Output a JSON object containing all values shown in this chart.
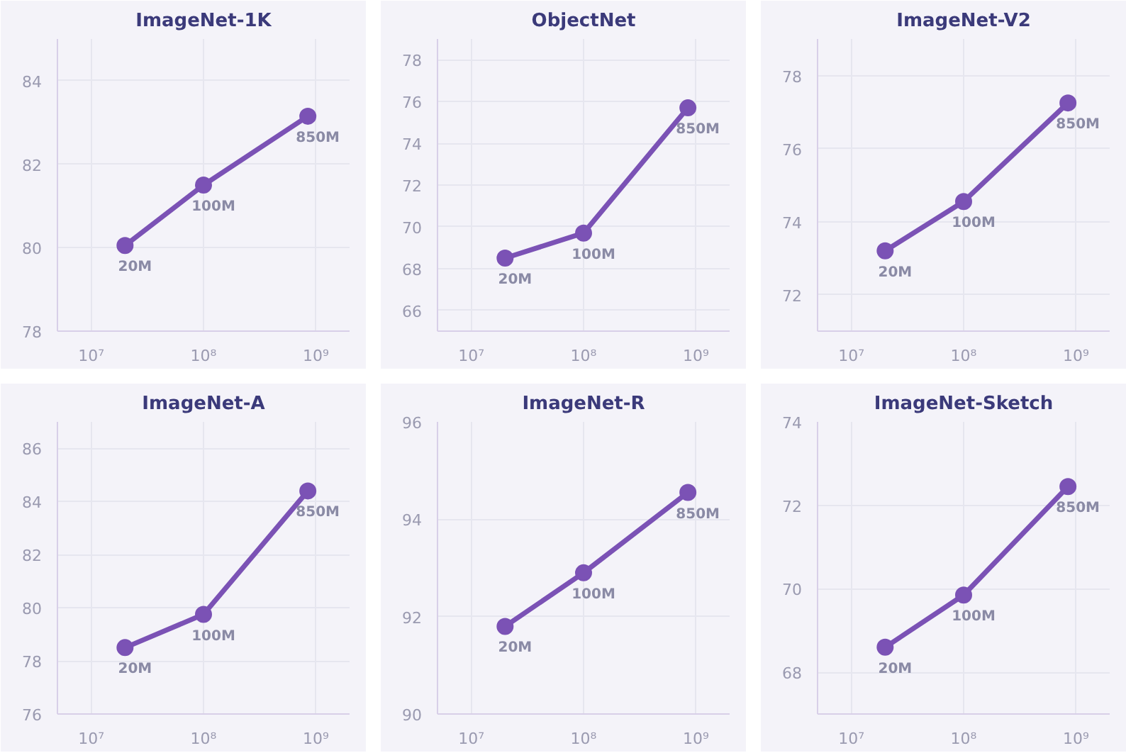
{
  "chart_data": [
    {
      "type": "line",
      "title": "ImageNet-1K",
      "x": [
        20000000,
        100000000,
        850000000
      ],
      "values": [
        80.05,
        81.5,
        83.15
      ],
      "color": "#7b52b5",
      "marker": "circle",
      "line_style": "solid",
      "log": "x",
      "grid": true,
      "xlim": [
        5000000,
        2000000000
      ],
      "xticks": [
        {
          "value": 10000000,
          "label": "10⁷"
        },
        {
          "value": 100000000,
          "label": "10⁸"
        },
        {
          "value": 1000000000,
          "label": "10⁹"
        }
      ],
      "ylim": [
        78,
        85
      ],
      "yticks": [
        78,
        80,
        82,
        84
      ],
      "annotations": [
        {
          "text": "20M",
          "x": 20000000,
          "y": 80.05
        },
        {
          "text": "100M",
          "x": 100000000,
          "y": 81.5
        },
        {
          "text": "850M",
          "x": 850000000,
          "y": 83.15
        }
      ]
    },
    {
      "type": "line",
      "title": "ObjectNet",
      "x": [
        20000000,
        100000000,
        850000000
      ],
      "values": [
        68.5,
        69.7,
        75.7
      ],
      "color": "#7b52b5",
      "marker": "circle",
      "line_style": "solid",
      "log": "x",
      "grid": true,
      "xlim": [
        5000000,
        2000000000
      ],
      "xticks": [
        {
          "value": 10000000,
          "label": "10⁷"
        },
        {
          "value": 100000000,
          "label": "10⁸"
        },
        {
          "value": 1000000000,
          "label": "10⁹"
        }
      ],
      "ylim": [
        65,
        79
      ],
      "yticks": [
        66,
        68,
        70,
        72,
        74,
        76,
        78
      ],
      "annotations": [
        {
          "text": "20M",
          "x": 20000000,
          "y": 68.5
        },
        {
          "text": "100M",
          "x": 100000000,
          "y": 69.7
        },
        {
          "text": "850M",
          "x": 850000000,
          "y": 75.7
        }
      ]
    },
    {
      "type": "line",
      "title": "ImageNet-V2",
      "x": [
        20000000,
        100000000,
        850000000
      ],
      "values": [
        73.2,
        74.55,
        77.25
      ],
      "color": "#7b52b5",
      "marker": "circle",
      "line_style": "solid",
      "log": "x",
      "grid": true,
      "xlim": [
        5000000,
        2000000000
      ],
      "xticks": [
        {
          "value": 10000000,
          "label": "10⁷"
        },
        {
          "value": 100000000,
          "label": "10⁸"
        },
        {
          "value": 1000000000,
          "label": "10⁹"
        }
      ],
      "ylim": [
        71,
        79
      ],
      "yticks": [
        72,
        74,
        76,
        78
      ],
      "annotations": [
        {
          "text": "20M",
          "x": 20000000,
          "y": 73.2
        },
        {
          "text": "100M",
          "x": 100000000,
          "y": 74.55
        },
        {
          "text": "850M",
          "x": 850000000,
          "y": 77.25
        }
      ]
    },
    {
      "type": "line",
      "title": "ImageNet-A",
      "x": [
        20000000,
        100000000,
        850000000
      ],
      "values": [
        78.5,
        79.75,
        84.4
      ],
      "color": "#7b52b5",
      "marker": "circle",
      "line_style": "solid",
      "log": "x",
      "grid": true,
      "xlim": [
        5000000,
        2000000000
      ],
      "xticks": [
        {
          "value": 10000000,
          "label": "10⁷"
        },
        {
          "value": 100000000,
          "label": "10⁸"
        },
        {
          "value": 1000000000,
          "label": "10⁹"
        }
      ],
      "ylim": [
        76,
        87
      ],
      "yticks": [
        76,
        78,
        80,
        82,
        84,
        86
      ],
      "annotations": [
        {
          "text": "20M",
          "x": 20000000,
          "y": 78.5
        },
        {
          "text": "100M",
          "x": 100000000,
          "y": 79.75
        },
        {
          "text": "850M",
          "x": 850000000,
          "y": 84.4
        }
      ]
    },
    {
      "type": "line",
      "title": "ImageNet-R",
      "x": [
        20000000,
        100000000,
        850000000
      ],
      "values": [
        91.8,
        92.9,
        94.55
      ],
      "color": "#7b52b5",
      "marker": "circle",
      "line_style": "solid",
      "log": "x",
      "grid": true,
      "xlim": [
        5000000,
        2000000000
      ],
      "xticks": [
        {
          "value": 10000000,
          "label": "10⁷"
        },
        {
          "value": 100000000,
          "label": "10⁸"
        },
        {
          "value": 1000000000,
          "label": "10⁹"
        }
      ],
      "ylim": [
        90,
        96
      ],
      "yticks": [
        90,
        92,
        94,
        96
      ],
      "annotations": [
        {
          "text": "20M",
          "x": 20000000,
          "y": 91.8
        },
        {
          "text": "100M",
          "x": 100000000,
          "y": 92.9
        },
        {
          "text": "850M",
          "x": 850000000,
          "y": 94.55
        }
      ]
    },
    {
      "type": "line",
      "title": "ImageNet-Sketch",
      "x": [
        20000000,
        100000000,
        850000000
      ],
      "values": [
        68.6,
        69.85,
        72.45
      ],
      "color": "#7b52b5",
      "marker": "circle",
      "line_style": "solid",
      "log": "x",
      "grid": true,
      "xlim": [
        5000000,
        2000000000
      ],
      "xticks": [
        {
          "value": 10000000,
          "label": "10⁷"
        },
        {
          "value": 100000000,
          "label": "10⁸"
        },
        {
          "value": 1000000000,
          "label": "10⁹"
        }
      ],
      "ylim": [
        67,
        74
      ],
      "yticks": [
        68,
        70,
        72,
        74
      ],
      "annotations": [
        {
          "text": "20M",
          "x": 20000000,
          "y": 68.6
        },
        {
          "text": "100M",
          "x": 100000000,
          "y": 69.85
        },
        {
          "text": "850M",
          "x": 850000000,
          "y": 72.45
        }
      ]
    }
  ]
}
